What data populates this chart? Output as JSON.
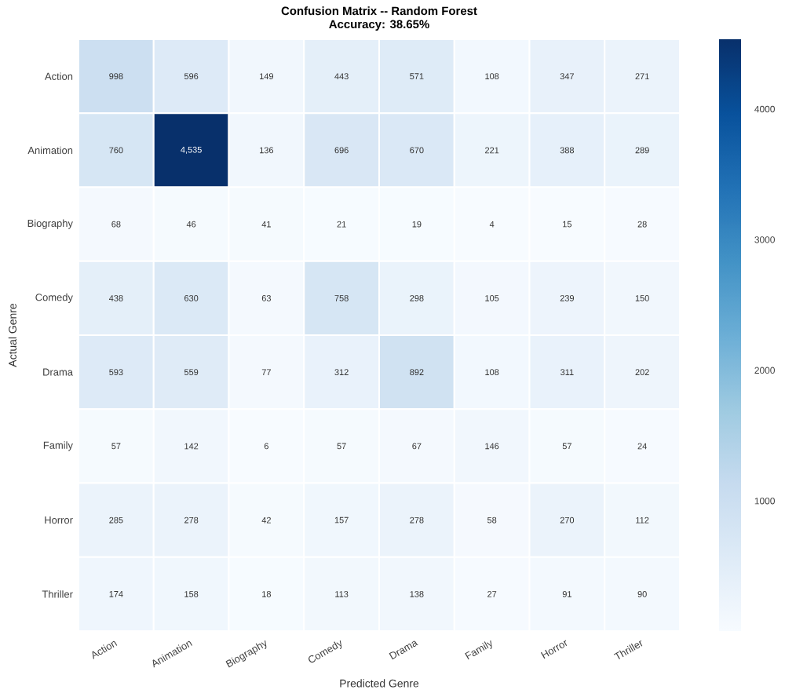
{
  "chart_data": {
    "type": "heatmap",
    "title": "Confusion Matrix -- Random Forest",
    "subtitle": "Accuracy: 38.65%",
    "xlabel": "Predicted Genre",
    "ylabel": "Actual Genre",
    "categories": [
      "Action",
      "Animation",
      "Biography",
      "Comedy",
      "Drama",
      "Family",
      "Horror",
      "Thriller"
    ],
    "y_categories": [
      "Action",
      "Animation",
      "Biography",
      "Comedy",
      "Drama",
      "Family",
      "Horror",
      "Thriller"
    ],
    "cells": [
      [
        998,
        596,
        149,
        443,
        571,
        108,
        347,
        271
      ],
      [
        760,
        4535,
        136,
        696,
        670,
        221,
        388,
        289
      ],
      [
        68,
        46,
        41,
        21,
        19,
        4,
        15,
        28
      ],
      [
        438,
        630,
        63,
        758,
        298,
        105,
        239,
        150
      ],
      [
        593,
        559,
        77,
        312,
        892,
        108,
        311,
        202
      ],
      [
        57,
        142,
        6,
        57,
        67,
        146,
        57,
        24
      ],
      [
        285,
        278,
        42,
        157,
        278,
        58,
        270,
        112
      ],
      [
        174,
        158,
        18,
        113,
        138,
        27,
        91,
        90
      ]
    ],
    "cell_labels": [
      [
        "998",
        "596",
        "149",
        "443",
        "571",
        "108",
        "347",
        "271"
      ],
      [
        "760",
        "4,535",
        "136",
        "696",
        "670",
        "221",
        "388",
        "289"
      ],
      [
        "68",
        "46",
        "41",
        "21",
        "19",
        "4",
        "15",
        "28"
      ],
      [
        "438",
        "630",
        "63",
        "758",
        "298",
        "105",
        "239",
        "150"
      ],
      [
        "593",
        "559",
        "77",
        "312",
        "892",
        "108",
        "311",
        "202"
      ],
      [
        "57",
        "142",
        "6",
        "57",
        "67",
        "146",
        "57",
        "24"
      ],
      [
        "285",
        "278",
        "42",
        "157",
        "278",
        "58",
        "270",
        "112"
      ],
      [
        "174",
        "158",
        "18",
        "113",
        "138",
        "27",
        "91",
        "90"
      ]
    ],
    "data_labels": true,
    "clim": [
      4,
      4535
    ],
    "cticks": [
      1000,
      2000,
      3000,
      4000
    ]
  }
}
